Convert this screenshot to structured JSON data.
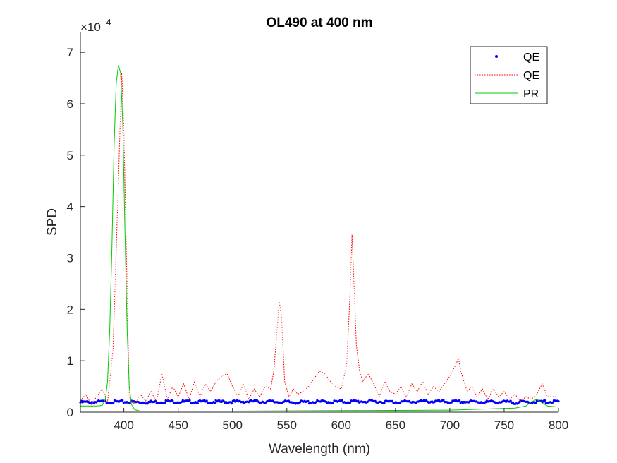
{
  "chart_data": {
    "type": "line",
    "title": "OL490 at 400 nm",
    "xlabel": "Wavelength (nm)",
    "ylabel": "SPD",
    "y_exponent_base": "×10",
    "y_exponent_power": "-4",
    "xlim": [
      360,
      800
    ],
    "ylim": [
      0,
      7.4
    ],
    "xticks": [
      400,
      450,
      500,
      550,
      600,
      650,
      700,
      750,
      800
    ],
    "yticks": [
      0,
      1,
      2,
      3,
      4,
      5,
      6,
      7
    ],
    "grid": false,
    "legend_position": "top-right",
    "series": [
      {
        "name": "QE",
        "style": "dots",
        "color": "#0000ff",
        "x": [
          360,
          380,
          400,
          420,
          440,
          460,
          480,
          500,
          520,
          540,
          560,
          580,
          600,
          620,
          640,
          660,
          680,
          700,
          720,
          740,
          760,
          780,
          800
        ],
        "y": [
          0.19,
          0.2,
          0.2,
          0.19,
          0.21,
          0.2,
          0.2,
          0.2,
          0.21,
          0.2,
          0.19,
          0.2,
          0.2,
          0.21,
          0.2,
          0.2,
          0.21,
          0.2,
          0.2,
          0.2,
          0.19,
          0.2,
          0.2
        ]
      },
      {
        "name": "QE",
        "style": "dotted",
        "color": "#ff0000",
        "x": [
          360,
          365,
          370,
          375,
          380,
          385,
          390,
          395,
          398,
          400,
          405,
          410,
          415,
          420,
          425,
          430,
          435,
          440,
          445,
          450,
          455,
          460,
          465,
          470,
          475,
          480,
          485,
          490,
          495,
          500,
          505,
          510,
          515,
          520,
          525,
          530,
          535,
          538,
          541,
          543,
          545,
          548,
          552,
          556,
          560,
          565,
          570,
          575,
          580,
          585,
          590,
          595,
          600,
          605,
          608,
          610,
          612,
          614,
          617,
          620,
          625,
          630,
          635,
          640,
          645,
          650,
          655,
          660,
          665,
          670,
          675,
          680,
          685,
          690,
          695,
          700,
          705,
          708,
          710,
          713,
          716,
          720,
          725,
          730,
          735,
          740,
          745,
          750,
          755,
          760,
          765,
          770,
          775,
          780,
          785,
          790,
          795,
          800
        ],
        "y": [
          0.22,
          0.35,
          0.15,
          0.3,
          0.45,
          0.2,
          1.2,
          4.5,
          6.6,
          5.5,
          0.3,
          0.15,
          0.35,
          0.22,
          0.4,
          0.2,
          0.75,
          0.25,
          0.5,
          0.3,
          0.55,
          0.25,
          0.6,
          0.3,
          0.55,
          0.4,
          0.6,
          0.7,
          0.75,
          0.5,
          0.3,
          0.55,
          0.25,
          0.45,
          0.3,
          0.5,
          0.45,
          0.8,
          1.6,
          2.15,
          1.9,
          0.6,
          0.3,
          0.45,
          0.35,
          0.4,
          0.5,
          0.65,
          0.8,
          0.75,
          0.6,
          0.5,
          0.45,
          0.9,
          2.2,
          3.45,
          2.4,
          1.3,
          0.8,
          0.6,
          0.75,
          0.55,
          0.3,
          0.6,
          0.4,
          0.35,
          0.5,
          0.3,
          0.55,
          0.4,
          0.6,
          0.35,
          0.5,
          0.4,
          0.55,
          0.7,
          0.9,
          1.05,
          0.8,
          0.6,
          0.4,
          0.5,
          0.3,
          0.45,
          0.25,
          0.45,
          0.3,
          0.4,
          0.25,
          0.35,
          0.2,
          0.3,
          0.25,
          0.35,
          0.55,
          0.3,
          0.3,
          0.3
        ]
      },
      {
        "name": "PR",
        "style": "solid",
        "color": "#00cc00",
        "x": [
          360,
          375,
          380,
          383,
          385,
          387,
          389,
          391,
          393,
          395,
          397,
          399,
          401,
          403,
          405,
          407,
          410,
          415,
          425,
          450,
          500,
          600,
          700,
          760,
          770,
          775,
          780,
          785,
          790,
          800
        ],
        "y": [
          0.12,
          0.12,
          0.13,
          0.25,
          0.6,
          1.6,
          3.2,
          5.2,
          6.4,
          6.75,
          6.6,
          5.6,
          3.5,
          1.6,
          0.5,
          0.15,
          0.05,
          0.02,
          0.02,
          0.02,
          0.02,
          0.03,
          0.04,
          0.08,
          0.12,
          0.2,
          0.25,
          0.18,
          0.12,
          0.1
        ]
      }
    ]
  }
}
